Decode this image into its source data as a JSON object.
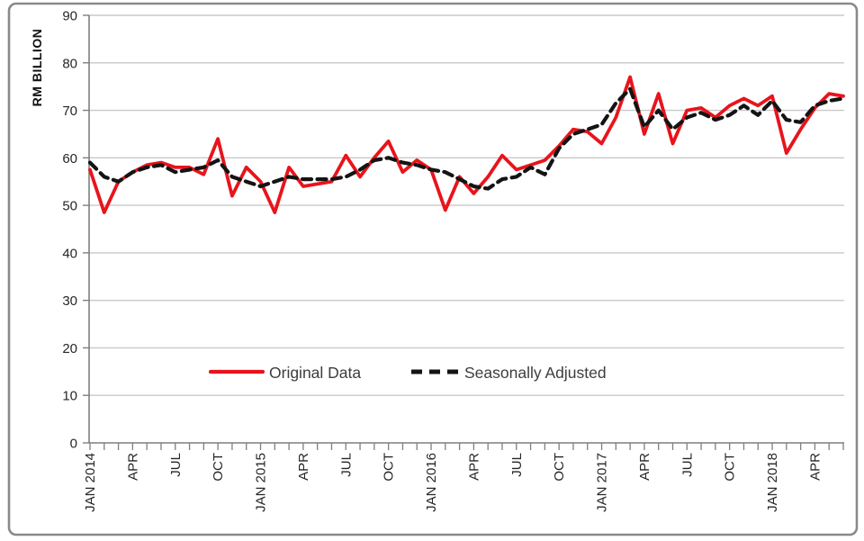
{
  "chart": {
    "y_axis_title": "RM BILLION",
    "legend": [
      {
        "label": "Original Data"
      },
      {
        "label": "Seasonally Adjusted"
      }
    ]
  },
  "chart_data": {
    "type": "line",
    "title": "",
    "xlabel": "",
    "ylabel": "RM BILLION",
    "ylim": [
      0,
      90
    ],
    "y_ticks": [
      0,
      10,
      20,
      30,
      40,
      50,
      60,
      70,
      80,
      90
    ],
    "grid": true,
    "legend_position": "inside-bottom-center",
    "n_points": 54,
    "x_start": "JAN 2014",
    "x_end": "JUN 2018",
    "x_tick_every": 3,
    "x_tick_labels": [
      "JAN 2014",
      "APR",
      "JUL",
      "OCT",
      "JAN 2015",
      "APR",
      "JUL",
      "OCT",
      "JAN 2016",
      "APR",
      "JUL",
      "OCT",
      "JAN 2017",
      "APR",
      "JUL",
      "OCT",
      "JAN 2018",
      "APR"
    ],
    "series": [
      {
        "name": "Original Data",
        "style": "solid",
        "color": "#e8141c",
        "values": [
          57.5,
          48.5,
          55,
          57,
          58.5,
          59,
          58,
          58,
          56.5,
          64,
          52,
          58,
          55,
          48.5,
          58,
          54,
          54.5,
          55,
          60.5,
          56,
          60,
          63.5,
          57,
          59.5,
          57.5,
          49,
          56,
          52.5,
          56,
          60.5,
          57.5,
          58.5,
          59.5,
          62.5,
          66,
          65.5,
          63,
          68.5,
          77,
          65,
          73.5,
          63,
          70,
          70.5,
          68.5,
          71,
          72.5,
          71,
          73,
          61,
          66,
          70.5,
          73.5,
          73
        ]
      },
      {
        "name": "Seasonally Adjusted",
        "style": "dashed",
        "color": "#141414",
        "values": [
          59,
          56,
          55,
          57,
          58,
          58.5,
          57,
          57.5,
          58,
          59.5,
          56,
          55,
          54,
          55,
          56,
          55.5,
          55.5,
          55.5,
          56,
          57.5,
          59.5,
          60,
          59,
          58.5,
          57.5,
          57,
          55.5,
          54,
          53.5,
          55.5,
          56,
          58,
          56.5,
          62,
          65,
          66,
          67,
          71.5,
          74.5,
          66.5,
          70,
          66,
          68.5,
          69.5,
          68,
          69,
          71,
          69,
          72,
          68,
          67.5,
          71,
          72,
          72.5
        ]
      }
    ]
  },
  "colors": {
    "background": "#ffffff",
    "frame": "#8a8a8a",
    "gridline": "#c9c9c9",
    "axis": "#7f7f7f",
    "tick_text": "#262626",
    "original_line": "#e8141c",
    "seasonal_line": "#141414"
  }
}
